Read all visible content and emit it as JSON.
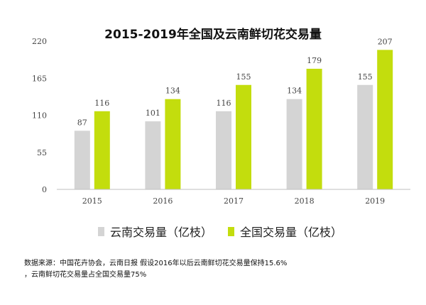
{
  "chart_data": {
    "type": "bar",
    "title": "2015-2019年全国及云南鲜切花交易量",
    "categories": [
      "2015",
      "2016",
      "2017",
      "2018",
      "2019"
    ],
    "series": [
      {
        "name": "云南交易量（亿枝）",
        "values": [
          87,
          101,
          116,
          134,
          155
        ],
        "color": "#d4d4d4"
      },
      {
        "name": "全国交易量（亿枝）",
        "values": [
          116,
          134,
          155,
          179,
          207
        ],
        "color": "#c3dd0d"
      }
    ],
    "yticks": [
      0,
      55,
      110,
      165,
      220
    ],
    "ylim": [
      0,
      220
    ],
    "grid": false,
    "legend": "bottom"
  },
  "source_note": {
    "line1": "数据来源：中国花卉协会，云南日报 假设2016年以后云南鲜切花交易量保持15.6%",
    "line2": "，云南鲜切花交易量占全国交易量75%"
  }
}
